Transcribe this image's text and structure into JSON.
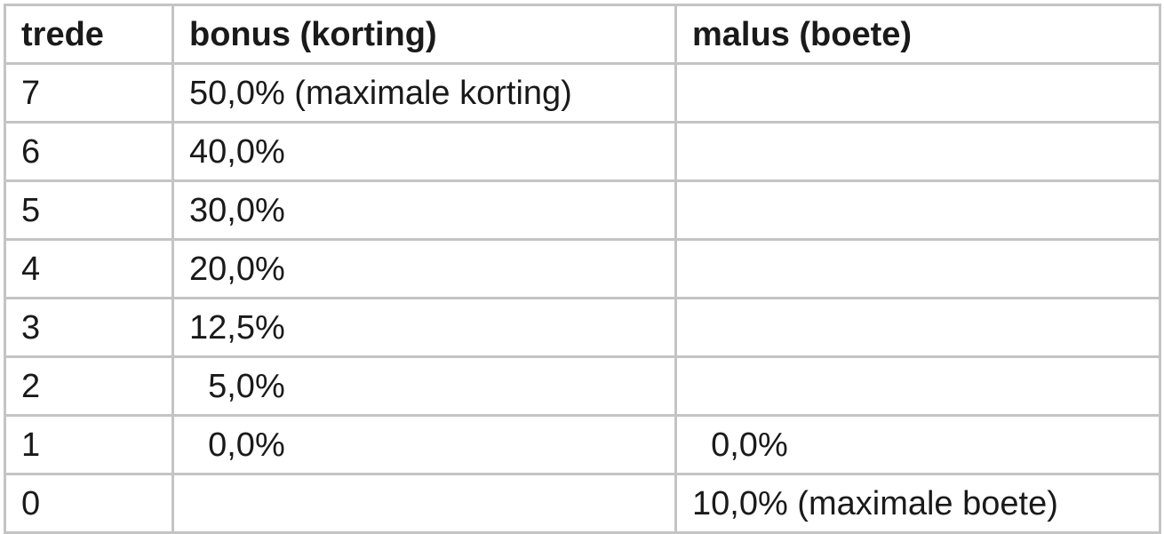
{
  "table": {
    "headers": [
      "trede",
      "bonus (korting)",
      "malus (boete)"
    ],
    "rows": [
      {
        "trede": "7",
        "bonus": "50,0% (maximale korting)",
        "malus": ""
      },
      {
        "trede": "6",
        "bonus": "40,0%",
        "malus": ""
      },
      {
        "trede": "5",
        "bonus": "30,0%",
        "malus": ""
      },
      {
        "trede": "4",
        "bonus": "20,0%",
        "malus": ""
      },
      {
        "trede": "3",
        "bonus": "12,5%",
        "malus": ""
      },
      {
        "trede": "2",
        "bonus": "  5,0%",
        "malus": ""
      },
      {
        "trede": "1",
        "bonus": "  0,0%",
        "malus": "  0,0%"
      },
      {
        "trede": "0",
        "bonus": "",
        "malus": "10,0% (maximale boete)"
      }
    ]
  }
}
